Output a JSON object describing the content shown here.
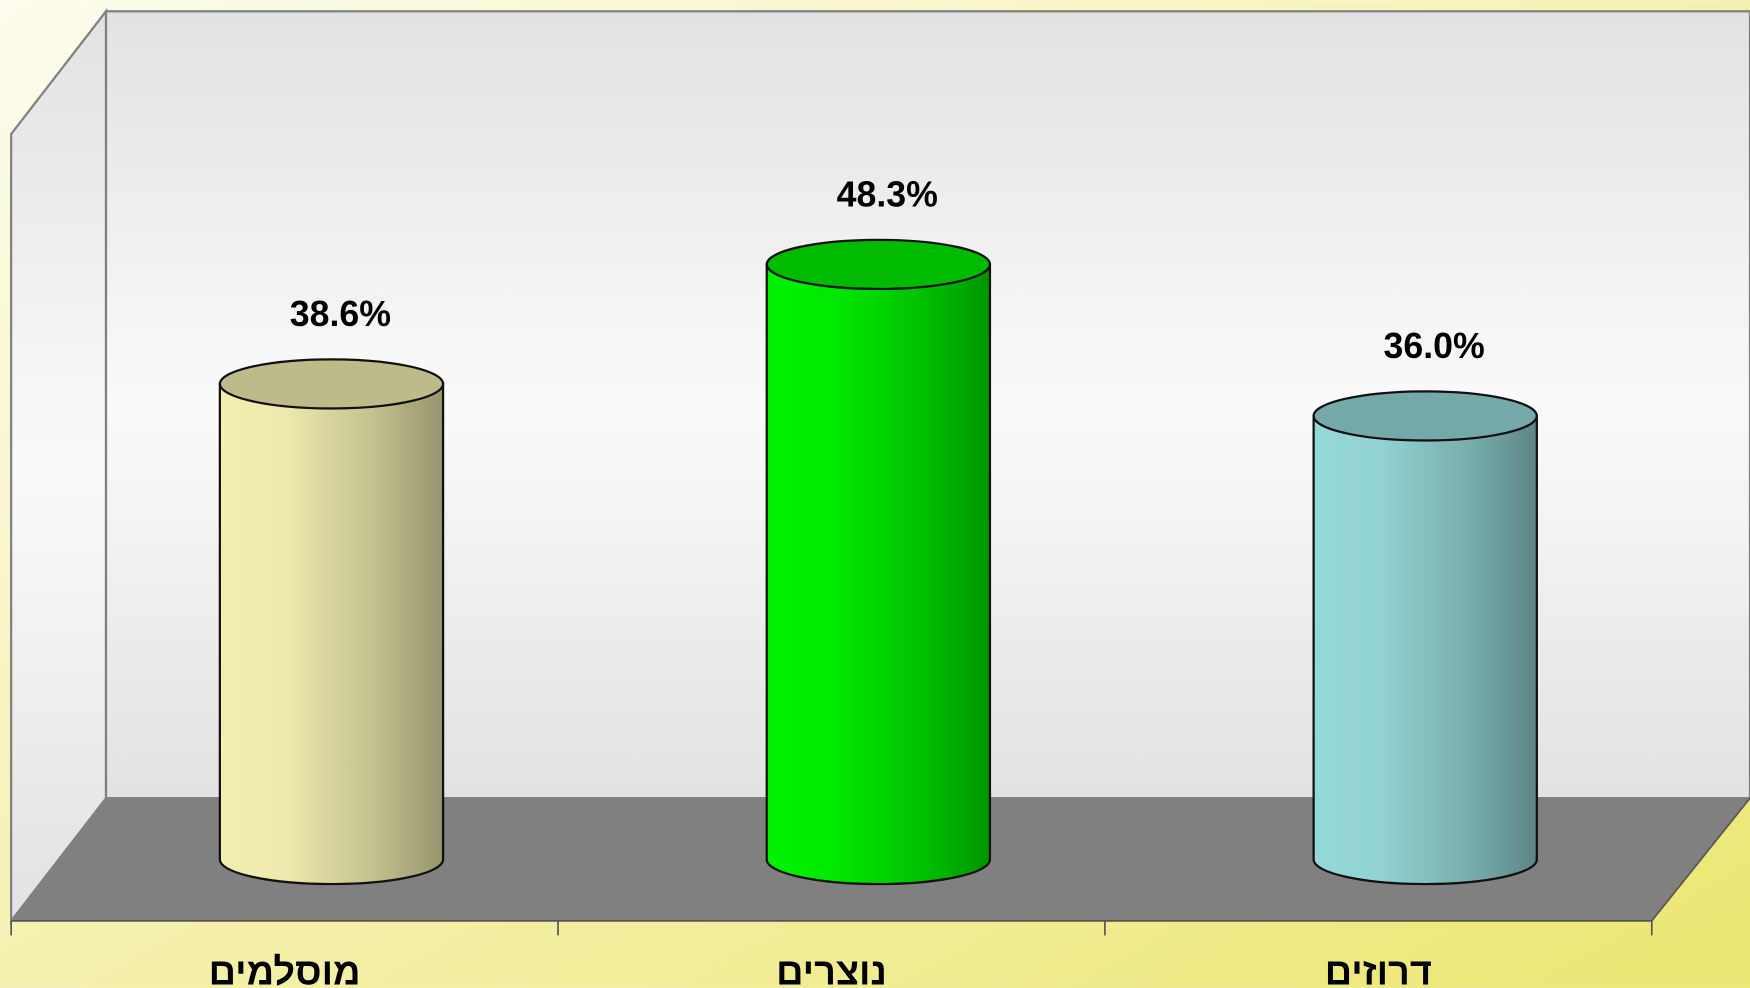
{
  "chart_data": {
    "type": "bar",
    "categories": [
      "מוסלמים",
      "נוצרים",
      "דרוזים"
    ],
    "values": [
      38.6,
      48.3,
      36.0
    ],
    "value_labels": [
      "38.6%",
      "48.3%",
      "36.0%"
    ],
    "colors": [
      "#f2f0b0",
      "#00f000",
      "#96d8d8"
    ]
  }
}
